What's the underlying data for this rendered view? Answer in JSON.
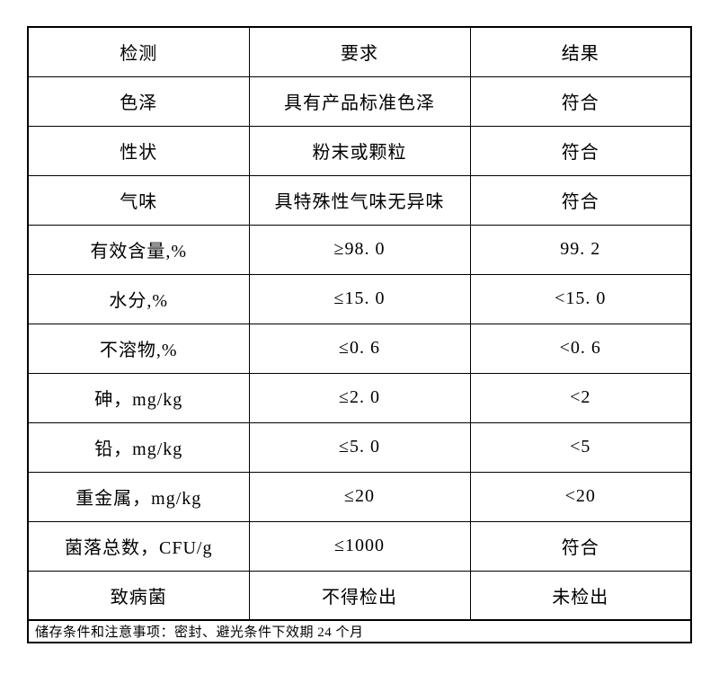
{
  "table": {
    "columns": [
      "检测",
      "要求",
      "结果"
    ],
    "rows": [
      {
        "item": "色泽",
        "requirement": "具有产品标准色泽",
        "result": "符合"
      },
      {
        "item": "性状",
        "requirement": "粉末或颗粒",
        "result": "符合"
      },
      {
        "item": "气味",
        "requirement": "具特殊性气味无异味",
        "result": "符合"
      },
      {
        "item": "有效含量,%",
        "requirement": "≥98. 0",
        "result": "99. 2"
      },
      {
        "item": "水分,%",
        "requirement": "≤15. 0",
        "result": "<15. 0"
      },
      {
        "item": "不溶物,%",
        "requirement": "≤0. 6",
        "result": "<0. 6"
      },
      {
        "item": "砷，mg/kg",
        "requirement": "≤2. 0",
        "result": "<2"
      },
      {
        "item": "铅，mg/kg",
        "requirement": "≤5. 0",
        "result": "<5"
      },
      {
        "item": "重金属，mg/kg",
        "requirement": "≤20",
        "result": "<20"
      },
      {
        "item": "菌落总数，CFU/g",
        "requirement": "≤1000",
        "result": "符合"
      },
      {
        "item": "致病菌",
        "requirement": "不得检出",
        "result": "未检出"
      }
    ],
    "footer": "储存条件和注意事项：密封、避光条件下效期 24 个月",
    "colors": {
      "border": "#000000",
      "text": "#000000",
      "background": "#ffffff"
    }
  }
}
